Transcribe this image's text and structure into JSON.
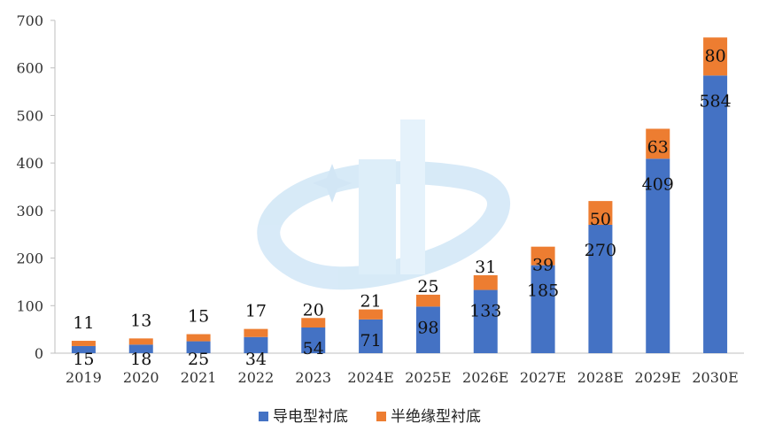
{
  "chart_data": {
    "type": "bar",
    "stacked": true,
    "categories": [
      "2019",
      "2020",
      "2021",
      "2022",
      "2023",
      "2024E",
      "2025E",
      "2026E",
      "2027E",
      "2028E",
      "2029E",
      "2030E"
    ],
    "series": [
      {
        "name": "导电型衬底",
        "color": "#4472C4",
        "values": [
          15,
          18,
          25,
          34,
          54,
          71,
          98,
          133,
          185,
          270,
          409,
          584
        ]
      },
      {
        "name": "半绝缘型衬底",
        "color": "#ED7D31",
        "values": [
          11,
          13,
          15,
          17,
          20,
          21,
          25,
          31,
          39,
          50,
          63,
          80
        ]
      }
    ],
    "ylim": [
      0,
      700
    ],
    "yticks": [
      0,
      100,
      200,
      300,
      400,
      500,
      600,
      700
    ],
    "legend_position": "bottom-center",
    "grid": false
  }
}
